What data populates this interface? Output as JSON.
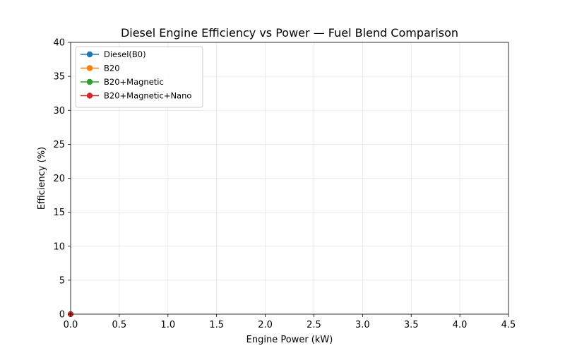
{
  "chart_data": {
    "type": "line",
    "title": "Diesel Engine Efficiency vs Power — Fuel Blend Comparison",
    "xlabel": "Engine Power (kW)",
    "ylabel": "Efficiency (%)",
    "xlim": [
      0,
      4.5
    ],
    "ylim": [
      0,
      40
    ],
    "x_ticks": [
      "0.0",
      "0.5",
      "1.0",
      "1.5",
      "2.0",
      "2.5",
      "3.0",
      "3.5",
      "4.0",
      "4.5"
    ],
    "y_ticks": [
      "0",
      "5",
      "10",
      "15",
      "20",
      "25",
      "30",
      "35",
      "40"
    ],
    "grid": true,
    "legend_position": "top-left",
    "series": [
      {
        "name": "Diesel(B0)",
        "color": "#1f77b4",
        "marker": "circle",
        "x": [
          0.0
        ],
        "y": [
          0.0
        ]
      },
      {
        "name": "B20",
        "color": "#ff7f0e",
        "marker": "circle",
        "x": [
          0.0
        ],
        "y": [
          0.0
        ]
      },
      {
        "name": "B20+Magnetic",
        "color": "#2ca02c",
        "marker": "circle",
        "x": [
          0.0
        ],
        "y": [
          0.0
        ]
      },
      {
        "name": "B20+Magnetic+Nano",
        "color": "#d62728",
        "marker": "circle",
        "x": [
          0.0
        ],
        "y": [
          0.0
        ]
      }
    ]
  }
}
